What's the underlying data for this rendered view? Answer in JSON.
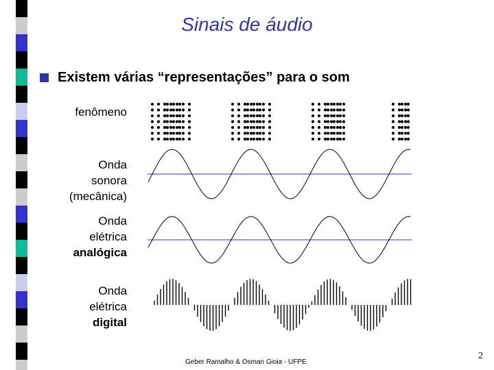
{
  "slide": {
    "title": "Sinais de áudio",
    "bullet": "Existem várias “representações” para o som",
    "labels": {
      "fenomeno": "fenômeno",
      "onda_sonora": [
        "Onda",
        "sonora",
        "(mecânica)"
      ],
      "onda_analogica": [
        "Onda",
        "elétrica",
        "analógica"
      ],
      "onda_digital": [
        "Onda",
        "elétrica",
        "digital"
      ]
    },
    "footer": "Geber Ramalho & Osman Gioia - UFPE",
    "page_number": "2"
  },
  "colors": {
    "accent": "#3333aa",
    "stripe_black": "#000000",
    "stripe_blue": "#3333cc",
    "stripe_teal": "#11bb99",
    "stripe_lavender": "#ccccee",
    "stripe_gray": "#cccccc",
    "axis_line": "#3333aa"
  }
}
